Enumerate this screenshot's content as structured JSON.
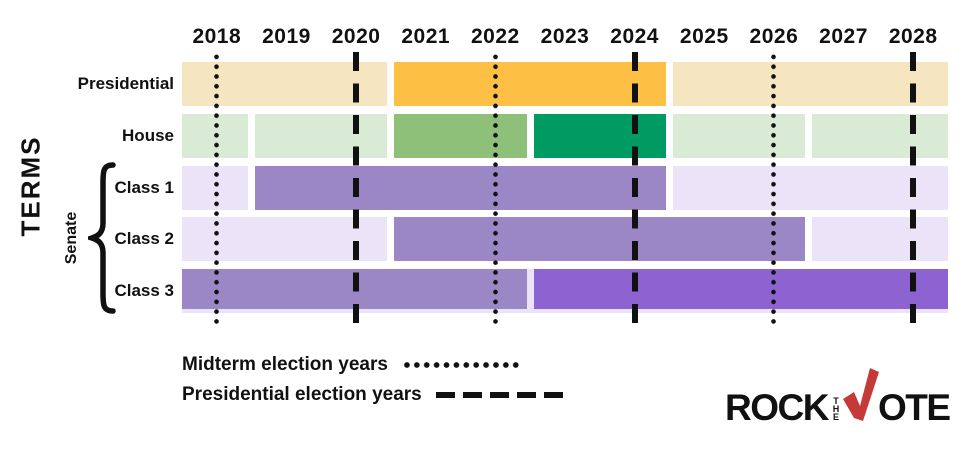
{
  "colors": {
    "text": "#111111",
    "line": "#111111",
    "tan_light": "#f6e5c1",
    "orange": "#fdc044",
    "green_light": "#d9ebd4",
    "green_medium": "#8fc07a",
    "green_dark": "#009b62",
    "lavender_light": "#ebe3f8",
    "purple_medium": "#9b86c6",
    "purple_bright": "#8d62d1",
    "logo_red": "#c43a38"
  },
  "axis": {
    "terms_label": "TERMS",
    "senate_label": "Senate"
  },
  "chart_data": {
    "type": "gantt-timeline",
    "title": "",
    "ylabel": "TERMS",
    "x_domain": [
      2018,
      2029
    ],
    "x_tick_labels": [
      "2018",
      "2019",
      "2020",
      "2021",
      "2022",
      "2023",
      "2024",
      "2025",
      "2026",
      "2027",
      "2028"
    ],
    "gridlines": {
      "midterm_election_years": [
        2018,
        2022,
        2026
      ],
      "presidential_election_years": [
        2020,
        2024,
        2028
      ]
    },
    "rows": [
      {
        "label": "Presidential",
        "group": "",
        "track": false,
        "segments": [
          {
            "from": 2018,
            "to": 2021,
            "color": "tan_light"
          },
          {
            "from": 2021,
            "to": 2025,
            "color": "orange"
          },
          {
            "from": 2025,
            "to": 2029,
            "color": "tan_light"
          }
        ]
      },
      {
        "label": "House",
        "group": "",
        "track": false,
        "segments": [
          {
            "from": 2018,
            "to": 2019,
            "color": "green_light"
          },
          {
            "from": 2019,
            "to": 2021,
            "color": "green_light"
          },
          {
            "from": 2021,
            "to": 2023,
            "color": "green_medium"
          },
          {
            "from": 2023,
            "to": 2025,
            "color": "green_dark"
          },
          {
            "from": 2025,
            "to": 2027,
            "color": "green_light"
          },
          {
            "from": 2027,
            "to": 2029,
            "color": "green_light"
          }
        ]
      },
      {
        "label": "Class 1",
        "group": "Senate",
        "track": false,
        "segments": [
          {
            "from": 2018,
            "to": 2019,
            "color": "lavender_light"
          },
          {
            "from": 2019,
            "to": 2025,
            "color": "purple_medium"
          },
          {
            "from": 2025,
            "to": 2029,
            "color": "lavender_light"
          }
        ]
      },
      {
        "label": "Class 2",
        "group": "Senate",
        "track": false,
        "segments": [
          {
            "from": 2018,
            "to": 2021,
            "color": "lavender_light"
          },
          {
            "from": 2021,
            "to": 2027,
            "color": "purple_medium"
          },
          {
            "from": 2027,
            "to": 2029,
            "color": "lavender_light"
          }
        ]
      },
      {
        "label": "Class 3",
        "group": "Senate",
        "track": true,
        "segments": [
          {
            "from": 2018,
            "to": 2023,
            "color": "purple_medium"
          },
          {
            "from": 2023,
            "to": 2029,
            "color": "purple_bright"
          }
        ]
      }
    ],
    "legend": [
      {
        "label": "Midterm election years",
        "line_style": "dotted"
      },
      {
        "label": "Presidential election years",
        "line_style": "dashed"
      }
    ],
    "legend_position": "bottom-left"
  },
  "logo": {
    "rock": "ROCK",
    "the": "THE",
    "ote": "OTE",
    "alt": "Rock the Vote"
  }
}
